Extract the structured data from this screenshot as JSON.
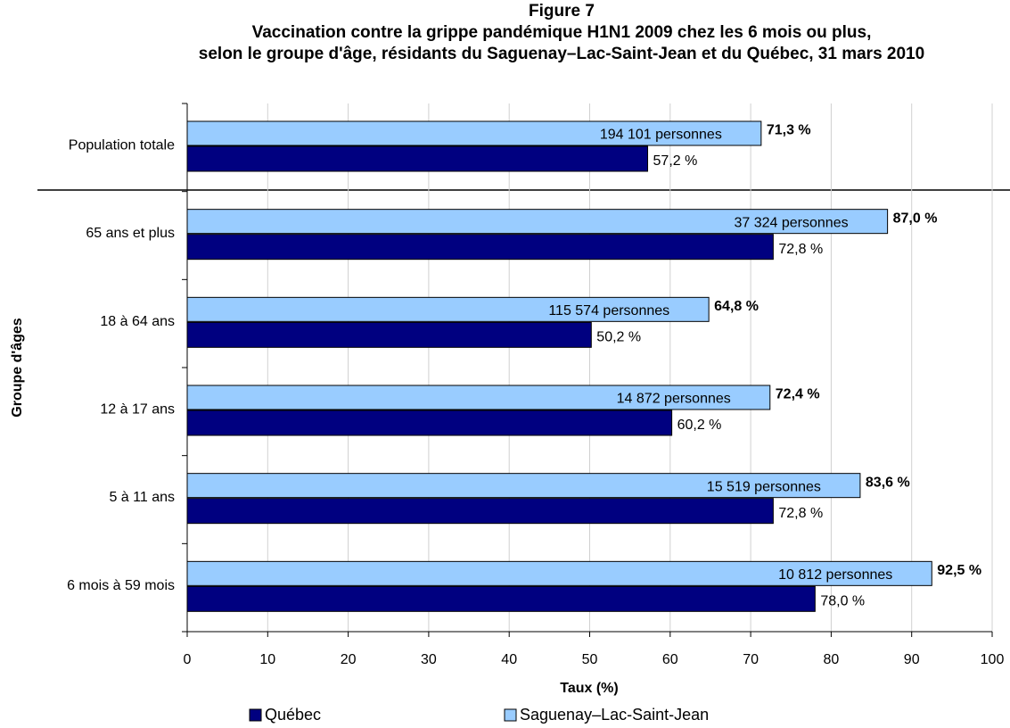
{
  "chart_data": {
    "type": "barh",
    "title": "Figure 7",
    "subtitle": [
      "Vaccination contre la grippe pandémique H1N1 2009 chez les 6 mois ou plus,",
      "selon le groupe d'âge, résidants du Saguenay–Lac-Saint-Jean et du Québec, 31 mars 2010"
    ],
    "xlabel": "Taux (%)",
    "ylabel": "Groupe d'âges",
    "categories": [
      "Population totale",
      "65 ans et plus",
      "18 à 64 ans",
      "12 à 17 ans",
      "5 à 11 ans",
      "6 mois à 59 mois"
    ],
    "series": [
      {
        "name": "Québec",
        "color": "#000080",
        "values": [
          57.2,
          72.8,
          50.2,
          60.2,
          72.8,
          78.0
        ],
        "value_labels": [
          "57,2 %",
          "72,8 %",
          "50,2 %",
          "60,2 %",
          "72,8 %",
          "78,0 %"
        ]
      },
      {
        "name": "Saguenay–Lac-Saint-Jean",
        "color": "#99ccff",
        "values": [
          71.3,
          87.0,
          64.8,
          72.4,
          83.6,
          92.5
        ],
        "value_labels": [
          "71,3 %",
          "87,0 %",
          "64,8 %",
          "72,4 %",
          "83,6 %",
          "92,5 %"
        ],
        "annotations": [
          "194 101 personnes",
          "37 324 personnes",
          "115 574 personnes",
          "14 872 personnes",
          "15 519 personnes",
          "10 812 personnes"
        ]
      }
    ],
    "xlim": [
      0,
      100
    ],
    "xticks": [
      0,
      10,
      20,
      30,
      40,
      50,
      60,
      70,
      80,
      90,
      100
    ],
    "grid": true,
    "legend": "bottom"
  }
}
